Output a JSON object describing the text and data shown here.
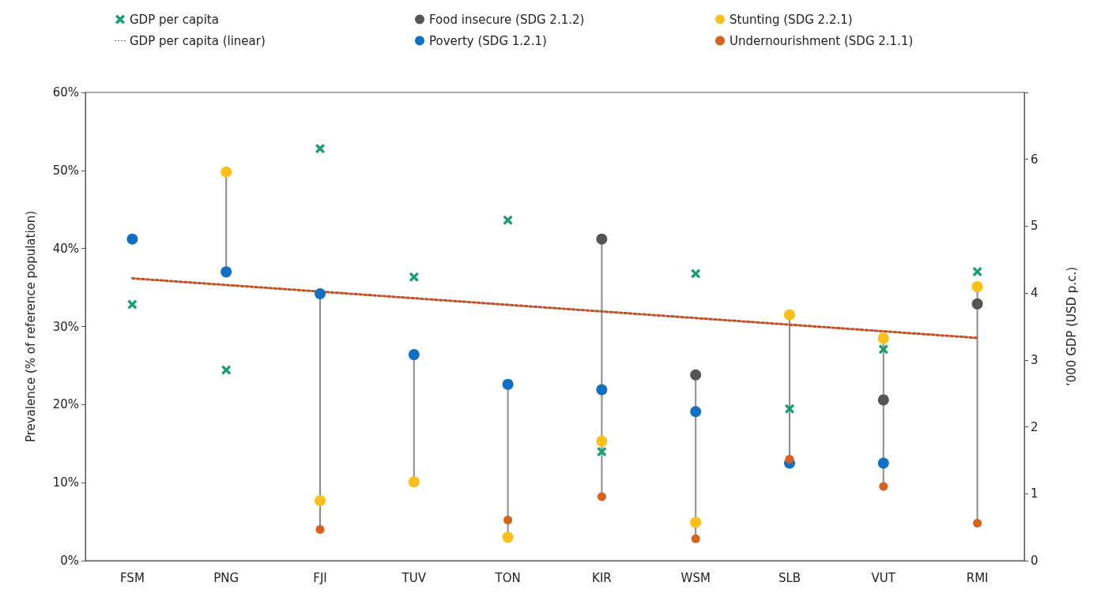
{
  "chart_data": {
    "type": "scatter",
    "ylabel": "Prevalence (% of reference population)",
    "y2label": "‘000 GDP (USD p.c.)",
    "categories": [
      "FSM",
      "PNG",
      "FJI",
      "TUV",
      "TON",
      "KIR",
      "WSM",
      "SLB",
      "VUT",
      "RMI"
    ],
    "ylim": [
      0,
      60
    ],
    "yticks": [
      {
        "value": 0,
        "label": "0%"
      },
      {
        "value": 10,
        "label": "10%"
      },
      {
        "value": 20,
        "label": "20%"
      },
      {
        "value": 30,
        "label": "30%"
      },
      {
        "value": 40,
        "label": "40%"
      },
      {
        "value": 50,
        "label": "50%"
      },
      {
        "value": 60,
        "label": "60%"
      }
    ],
    "y2lim": [
      0,
      7
    ],
    "y2ticks": [
      0,
      1,
      2,
      3,
      4,
      5,
      6,
      {
        "value": 7,
        "label": null
      }
    ],
    "grid": false,
    "legend": "top",
    "series": [
      {
        "name": "GDP per capita",
        "axis": "y2",
        "marker": "cross",
        "color": "#1a9e6e",
        "values": [
          3.83,
          2.85,
          6.16,
          4.24,
          5.09,
          1.63,
          4.29,
          2.27,
          3.16,
          4.32
        ]
      },
      {
        "name": "Food insecure (SDG 2.1.2)",
        "marker": "circle",
        "color": "#555555",
        "values": [
          null,
          null,
          null,
          null,
          null,
          41.2,
          23.8,
          null,
          20.6,
          32.9
        ]
      },
      {
        "name": "Stunting (SDG 2.2.1)",
        "marker": "circle",
        "color": "#f9c01a",
        "values": [
          null,
          49.8,
          7.7,
          10.1,
          3.0,
          15.3,
          4.9,
          31.5,
          28.5,
          35.1
        ]
      },
      {
        "name": "GDP per capita (linear)",
        "type": "line",
        "axis": "y2",
        "marker": "none",
        "line_style": "dotted",
        "color": "#c0522a",
        "x": [
          "FSM",
          "RMI"
        ],
        "values": [
          4.22,
          3.33
        ]
      },
      {
        "name": "Poverty (SDG 1.2.1)",
        "marker": "circle",
        "color": "#1170c4",
        "values": [
          41.2,
          37.0,
          34.2,
          26.4,
          22.6,
          21.9,
          19.1,
          12.5,
          12.5,
          null
        ]
      },
      {
        "name": "Undernourishment (SDG 2.1.1)",
        "marker": "circle",
        "color": "#d8611e",
        "values": [
          null,
          null,
          4.0,
          null,
          5.2,
          8.2,
          2.8,
          13.0,
          9.5,
          4.8
        ]
      }
    ]
  }
}
